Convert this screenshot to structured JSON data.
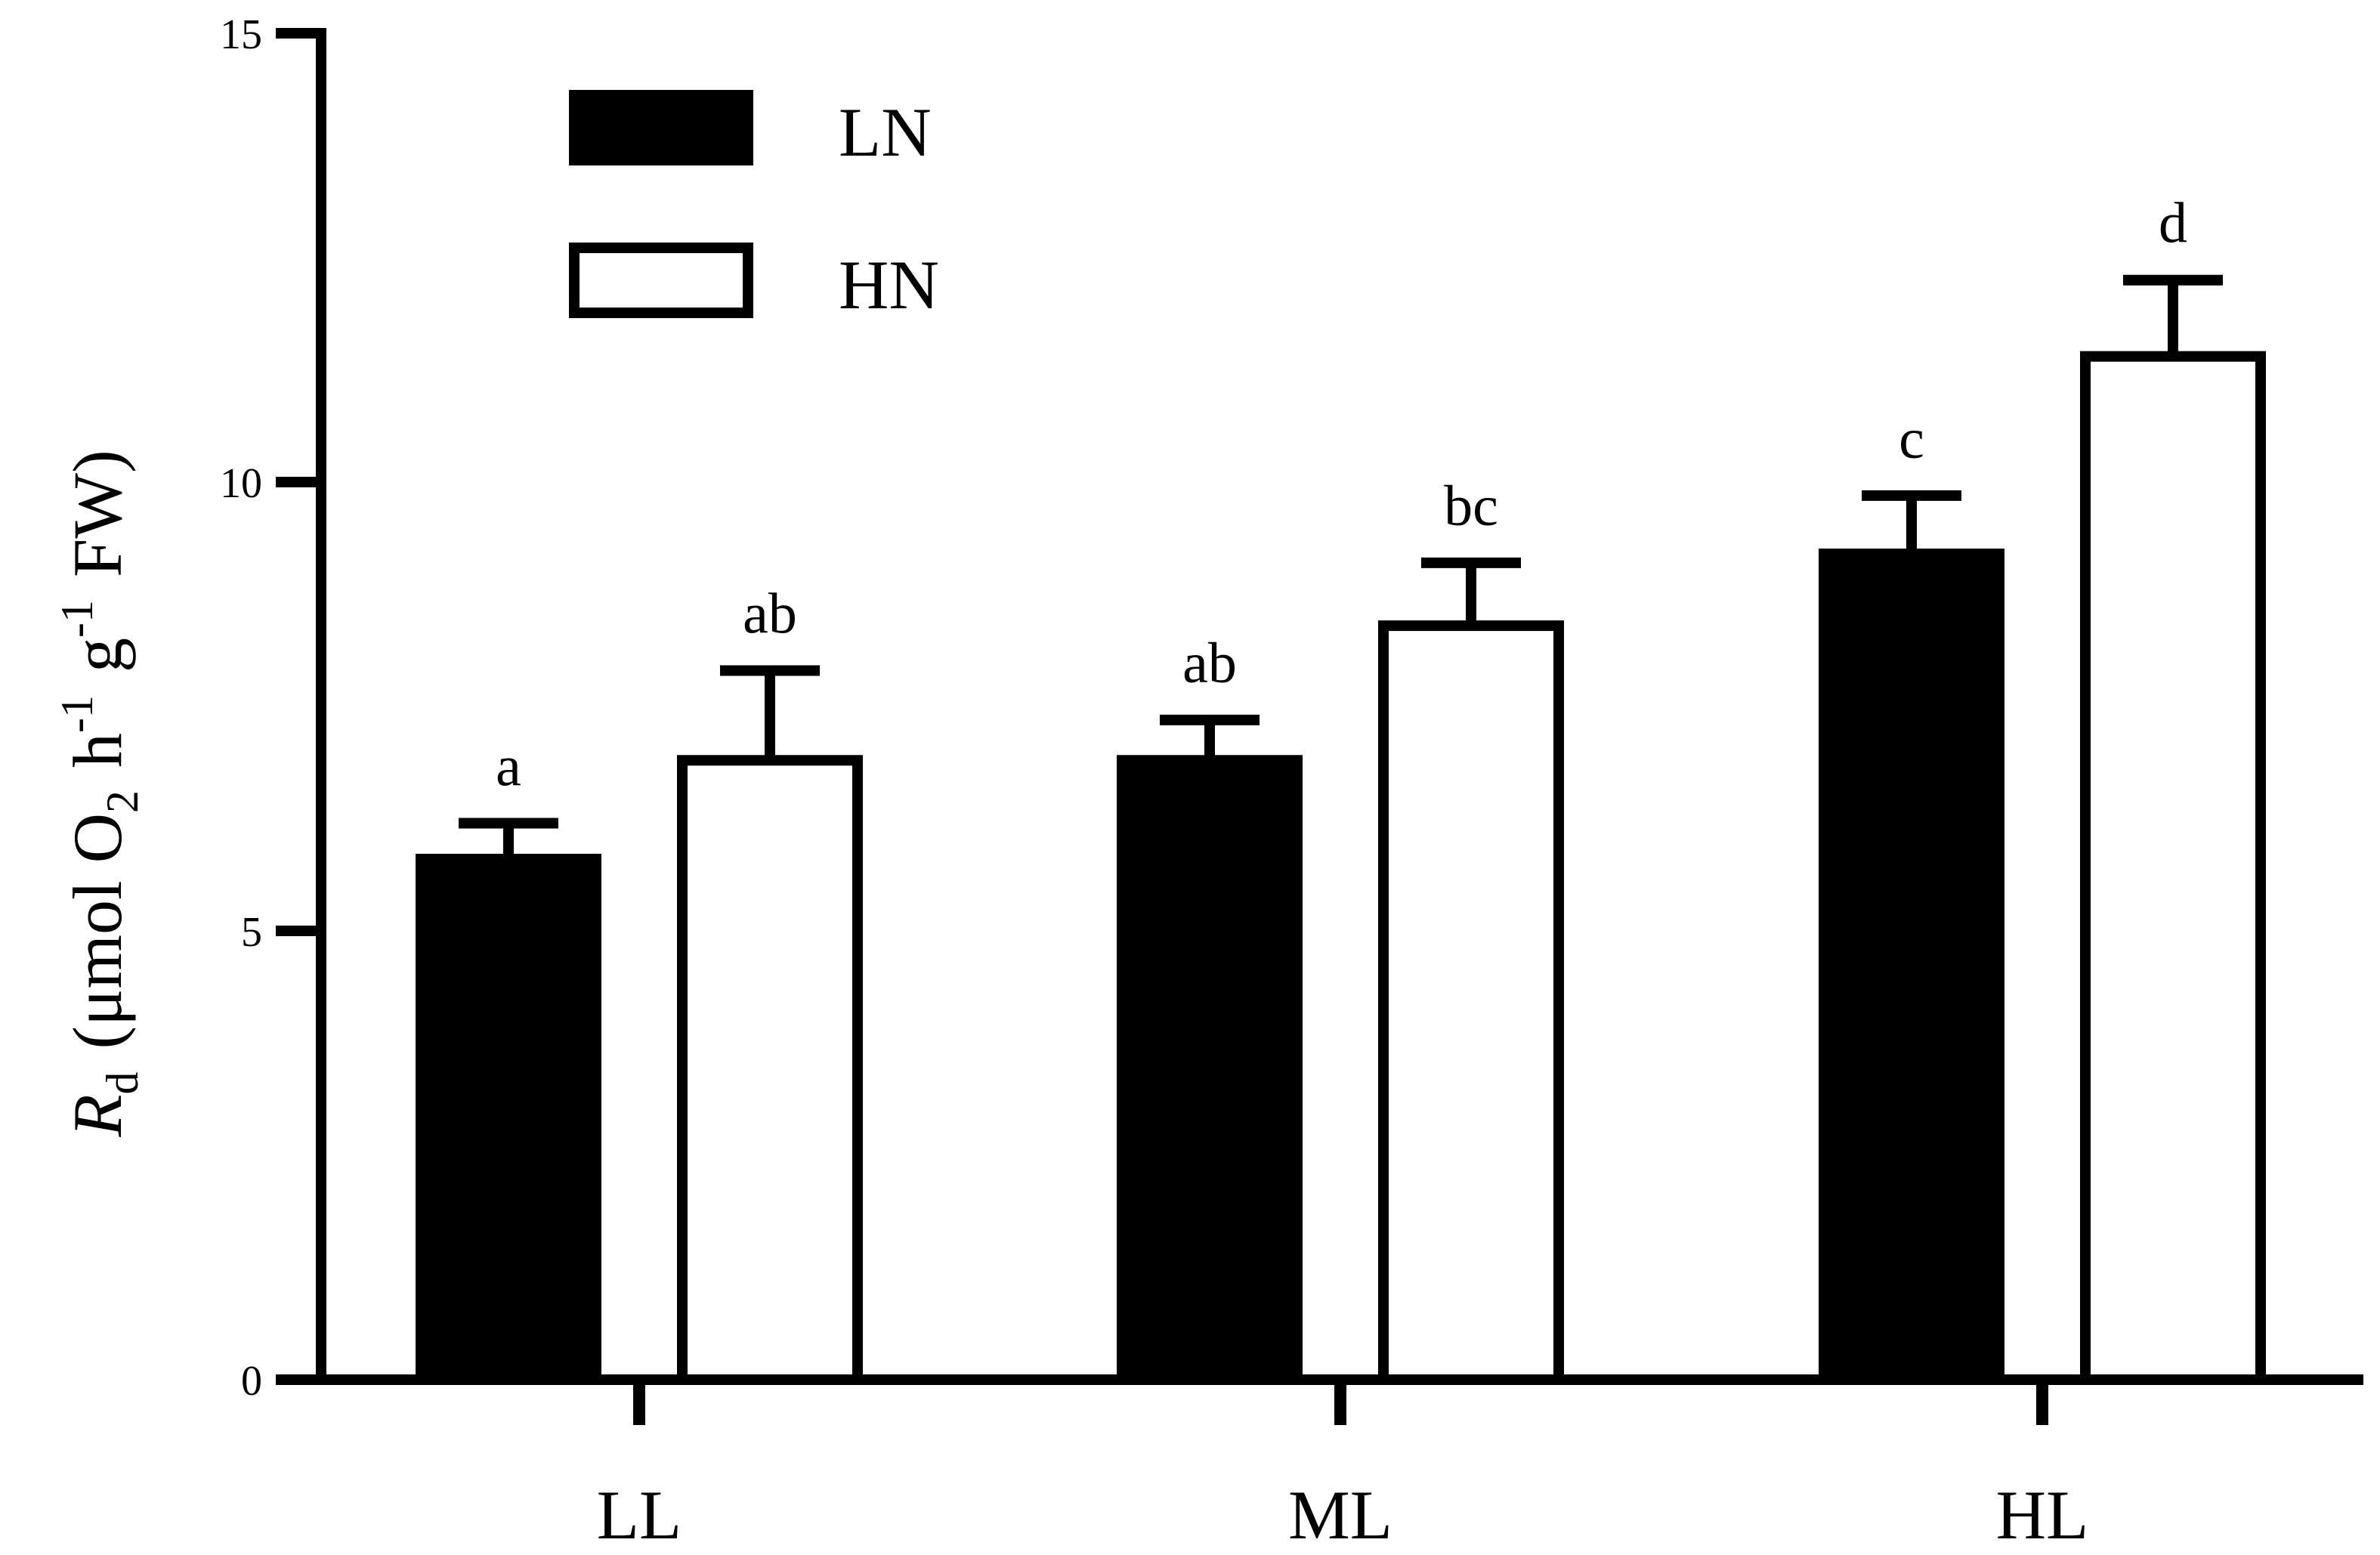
{
  "chart_data": {
    "type": "bar",
    "categories": [
      "LL",
      "ML",
      "HL"
    ],
    "series": [
      {
        "name": "LN",
        "fill": "#000000",
        "values": [
          5.8,
          6.9,
          9.2
        ],
        "errors": [
          0.4,
          0.45,
          0.65
        ],
        "labels": [
          "a",
          "ab",
          "c"
        ]
      },
      {
        "name": "HN",
        "fill": "#ffffff",
        "values": [
          6.9,
          8.4,
          11.4
        ],
        "errors": [
          1.0,
          0.7,
          0.85
        ],
        "labels": [
          "ab",
          "bc",
          "d"
        ]
      }
    ],
    "ylim": [
      0,
      15
    ],
    "yticks": [
      "0",
      "5",
      "10",
      "15"
    ],
    "ylabel": {
      "symbol": "R",
      "symbol_sub": "d",
      "open": "(μmol O",
      "o2_sub": "2",
      "h": "h",
      "h_sup": "-1",
      "g": "g",
      "g_sup": "-1",
      "close": "FW)"
    },
    "legend_position": "top-left",
    "grid": false,
    "colors": {
      "axis": "#000000",
      "LN": "#000000",
      "HN": "#ffffff"
    }
  }
}
